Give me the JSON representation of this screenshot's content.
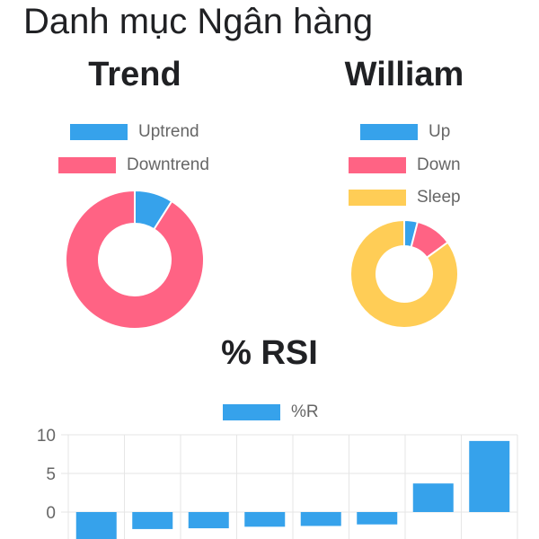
{
  "page": {
    "title": "Danh mục Ngân hàng"
  },
  "colors": {
    "blue": "#36a2eb",
    "pink": "#ff6384",
    "yellow": "#ffcd56",
    "grid": "#e6e6e6"
  },
  "chart_data": [
    {
      "type": "pie",
      "title": "Trend",
      "labels": [
        "Uptrend",
        "Downtrend"
      ],
      "values": [
        9,
        91
      ],
      "colors": [
        "#36a2eb",
        "#ff6384"
      ]
    },
    {
      "type": "pie",
      "title": "William",
      "labels": [
        "Up",
        "Down",
        "Sleep"
      ],
      "values": [
        4,
        11,
        85
      ],
      "colors": [
        "#36a2eb",
        "#ff6384",
        "#ffcd56"
      ]
    },
    {
      "type": "bar",
      "title": "% RSI",
      "series": [
        {
          "name": "%R",
          "values": [
            -3.5,
            -2.2,
            -2.1,
            -1.9,
            -1.8,
            -1.6,
            3.7,
            9.2
          ]
        }
      ],
      "yticks": [
        10,
        5,
        0
      ],
      "ylim": [
        -3.5,
        10
      ]
    }
  ]
}
